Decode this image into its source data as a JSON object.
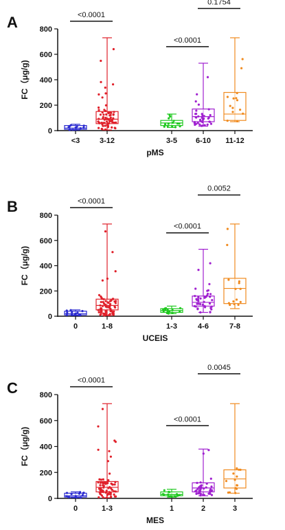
{
  "chart_data": [
    {
      "panel": "A",
      "type": "box",
      "xlabel": "pMS",
      "ylabel": "FC（μg/g)",
      "ylim": [
        0,
        800
      ],
      "yticks": [
        "0",
        "200",
        "400",
        "600",
        "800"
      ],
      "groups": [
        {
          "label": "<3",
          "color": "#2a2ad0",
          "min": 5,
          "q1": 10,
          "median": 20,
          "q3": 40,
          "max": 50
        },
        {
          "label": "3-12",
          "color": "#e0202a",
          "min": 5,
          "q1": 55,
          "median": 90,
          "q3": 150,
          "max": 730
        },
        {
          "label": "3-5",
          "color": "#1ec81e",
          "min": 25,
          "q1": 40,
          "median": 60,
          "q3": 80,
          "max": 130
        },
        {
          "label": "6-10",
          "color": "#a020d0",
          "min": 35,
          "q1": 70,
          "median": 110,
          "q3": 170,
          "max": 530
        },
        {
          "label": "11-12",
          "color": "#f08a1e",
          "min": 70,
          "q1": 80,
          "median": 130,
          "q3": 300,
          "max": 730
        }
      ],
      "comparisons": [
        {
          "a": 0,
          "b": 1,
          "y": 860,
          "text": "<0.0001"
        },
        {
          "a": 2,
          "b": 3,
          "y": 660,
          "text": "<0.0001"
        },
        {
          "a": 3,
          "b": 4,
          "y": 960,
          "text": "0.1754"
        }
      ]
    },
    {
      "panel": "B",
      "type": "box",
      "xlabel": "UCEIS",
      "ylabel": "FC（μg/g)",
      "ylim": [
        0,
        800
      ],
      "yticks": [
        "0",
        "200",
        "400",
        "600",
        "800"
      ],
      "groups": [
        {
          "label": "0",
          "color": "#2a2ad0",
          "min": 5,
          "q1": 10,
          "median": 20,
          "q3": 40,
          "max": 50
        },
        {
          "label": "1-8",
          "color": "#e0202a",
          "min": 5,
          "q1": 50,
          "median": 85,
          "q3": 135,
          "max": 730
        },
        {
          "label": "1-3",
          "color": "#1ec81e",
          "min": 20,
          "q1": 30,
          "median": 45,
          "q3": 60,
          "max": 80
        },
        {
          "label": "4-6",
          "color": "#a020d0",
          "min": 30,
          "q1": 80,
          "median": 110,
          "q3": 160,
          "max": 530
        },
        {
          "label": "7-8",
          "color": "#f08a1e",
          "min": 60,
          "q1": 100,
          "median": 220,
          "q3": 300,
          "max": 730
        }
      ],
      "comparisons": [
        {
          "a": 0,
          "b": 1,
          "y": 860,
          "text": "<0.0001"
        },
        {
          "a": 2,
          "b": 3,
          "y": 660,
          "text": "<0.0001"
        },
        {
          "a": 3,
          "b": 4,
          "y": 960,
          "text": "0.0052"
        }
      ]
    },
    {
      "panel": "C",
      "type": "box",
      "xlabel": "MES",
      "ylabel": "FC（μg/g)",
      "ylim": [
        0,
        800
      ],
      "yticks": [
        "0",
        "200",
        "400",
        "600",
        "800"
      ],
      "groups": [
        {
          "label": "0",
          "color": "#2a2ad0",
          "min": 5,
          "q1": 10,
          "median": 20,
          "q3": 40,
          "max": 50
        },
        {
          "label": "1-3",
          "color": "#e0202a",
          "min": 5,
          "q1": 50,
          "median": 85,
          "q3": 130,
          "max": 730
        },
        {
          "label": "1",
          "color": "#1ec81e",
          "min": 10,
          "q1": 20,
          "median": 30,
          "q3": 50,
          "max": 70
        },
        {
          "label": "2",
          "color": "#a020d0",
          "min": 20,
          "q1": 50,
          "median": 80,
          "q3": 120,
          "max": 380
        },
        {
          "label": "3",
          "color": "#f08a1e",
          "min": 40,
          "q1": 80,
          "median": 150,
          "q3": 220,
          "max": 730
        }
      ],
      "comparisons": [
        {
          "a": 0,
          "b": 1,
          "y": 860,
          "text": "<0.0001"
        },
        {
          "a": 2,
          "b": 3,
          "y": 560,
          "text": "<0.0001"
        },
        {
          "a": 3,
          "b": 4,
          "y": 960,
          "text": "0.0045"
        }
      ]
    }
  ]
}
